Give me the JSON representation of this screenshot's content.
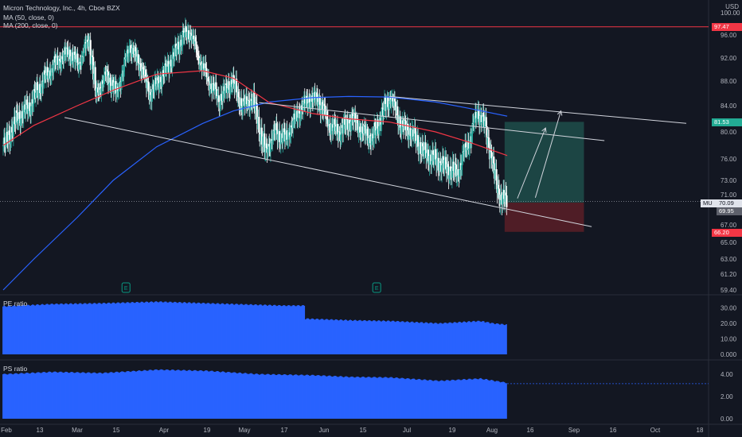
{
  "header": {
    "title": "Micron Technology, Inc., 4h, Cboe BZX",
    "ma50": "MA (50, close, 0)",
    "ma200": "MA (200, close, 0)",
    "currency": "USD"
  },
  "price_tags": {
    "red_line": "97.47",
    "target": "81.53",
    "symbol": "MU",
    "last": "70.09",
    "entry": "69.95",
    "stop": "66.20"
  },
  "panes": {
    "pe_label": "PE ratio",
    "ps_label": "PS ratio"
  },
  "colors": {
    "background": "#131722",
    "up": "#26a69a",
    "down": "#ffffff",
    "ma50": "#f23645",
    "ma200": "#2962ff",
    "bars": "#2962ff",
    "target_zone": "#1e4d4a",
    "stop_zone": "#5a1f27"
  },
  "chart_data": [
    {
      "type": "candlestick",
      "title": "Micron Technology, Inc., 4h, Cboe BZX",
      "y_ticks": [
        "100.00",
        "96.00",
        "92.00",
        "88.00",
        "84.00",
        "80.00",
        "76.00",
        "73.00",
        "71.00",
        "67.00",
        "65.00",
        "63.00",
        "61.20",
        "59.40"
      ],
      "x_ticks": [
        "Feb",
        "13",
        "Mar",
        "15",
        "Apr",
        "19",
        "May",
        "17",
        "Jun",
        "15",
        "Jul",
        "19",
        "Aug",
        "16",
        "Sep",
        "16",
        "Oct",
        "18"
      ],
      "ylim": [
        58.5,
        101
      ],
      "price_path": [
        [
          "2024-02-01",
          78
        ],
        [
          "2024-02-06",
          82
        ],
        [
          "2024-02-11",
          84
        ],
        [
          "2024-02-16",
          88
        ],
        [
          "2024-02-21",
          91
        ],
        [
          "2024-02-26",
          93
        ],
        [
          "2024-03-01",
          91
        ],
        [
          "2024-03-05",
          95
        ],
        [
          "2024-03-08",
          86
        ],
        [
          "2024-03-12",
          89
        ],
        [
          "2024-03-16",
          86
        ],
        [
          "2024-03-21",
          94
        ],
        [
          "2024-03-25",
          91
        ],
        [
          "2024-03-29",
          86
        ],
        [
          "2024-04-03",
          89
        ],
        [
          "2024-04-08",
          93
        ],
        [
          "2024-04-11",
          96
        ],
        [
          "2024-04-14",
          96.3
        ],
        [
          "2024-04-17",
          92
        ],
        [
          "2024-04-21",
          88
        ],
        [
          "2024-04-25",
          85
        ],
        [
          "2024-04-30",
          88
        ],
        [
          "2024-05-04",
          84
        ],
        [
          "2024-05-08",
          85
        ],
        [
          "2024-05-13",
          77
        ],
        [
          "2024-05-17",
          80
        ],
        [
          "2024-05-21",
          79
        ],
        [
          "2024-05-26",
          83
        ],
        [
          "2024-05-30",
          85
        ],
        [
          "2024-06-03",
          85
        ],
        [
          "2024-06-07",
          81
        ],
        [
          "2024-06-11",
          80
        ],
        [
          "2024-06-16",
          82
        ],
        [
          "2024-06-20",
          80
        ],
        [
          "2024-06-24",
          79
        ],
        [
          "2024-06-28",
          83
        ],
        [
          "2024-07-01",
          85.5
        ],
        [
          "2024-07-05",
          81
        ],
        [
          "2024-07-09",
          80
        ],
        [
          "2024-07-14",
          77
        ],
        [
          "2024-07-18",
          76
        ],
        [
          "2024-07-22",
          75
        ],
        [
          "2024-07-27",
          74
        ],
        [
          "2024-08-01",
          79
        ],
        [
          "2024-08-04",
          83
        ],
        [
          "2024-08-07",
          81
        ],
        [
          "2024-08-10",
          75
        ],
        [
          "2024-08-13",
          70.5
        ],
        [
          "2024-08-16",
          70
        ]
      ],
      "ma50_path": [
        [
          "2024-02-01",
          78
        ],
        [
          "2024-02-13",
          81
        ],
        [
          "2024-03-01",
          84
        ],
        [
          "2024-03-15",
          86.5
        ],
        [
          "2024-04-01",
          89.2
        ],
        [
          "2024-04-19",
          89.8
        ],
        [
          "2024-05-01",
          88.5
        ],
        [
          "2024-05-15",
          84.5
        ],
        [
          "2024-06-01",
          82.8
        ],
        [
          "2024-06-15",
          82
        ],
        [
          "2024-07-01",
          81.5
        ],
        [
          "2024-07-19",
          80
        ],
        [
          "2024-08-01",
          78.5
        ],
        [
          "2024-08-16",
          76.5
        ]
      ],
      "ma200_path": [
        [
          "2024-02-01",
          59.4
        ],
        [
          "2024-02-13",
          63
        ],
        [
          "2024-03-01",
          68
        ],
        [
          "2024-03-15",
          73
        ],
        [
          "2024-04-01",
          77.8
        ],
        [
          "2024-04-19",
          81.3
        ],
        [
          "2024-05-01",
          83.2
        ],
        [
          "2024-05-15",
          84.6
        ],
        [
          "2024-06-01",
          85.3
        ],
        [
          "2024-06-15",
          85.5
        ],
        [
          "2024-07-01",
          85.4
        ],
        [
          "2024-07-19",
          84.6
        ],
        [
          "2024-08-01",
          83.6
        ],
        [
          "2024-08-16",
          82.4
        ]
      ],
      "trendlines": [
        {
          "from": [
            "2024-02-25",
            82.2
          ],
          "to": [
            "2024-09-18",
            66.8
          ]
        },
        {
          "from": [
            "2024-05-11",
            84.5
          ],
          "to": [
            "2024-09-23",
            78.7
          ]
        },
        {
          "from": [
            "2024-07-01",
            85.5
          ],
          "to": [
            "2024-10-25",
            81.3
          ]
        }
      ],
      "arrows": [
        {
          "from": [
            "2024-08-20",
            70.5
          ],
          "to": [
            "2024-08-31",
            80.6
          ]
        },
        {
          "from": [
            "2024-08-27",
            70.6
          ],
          "to": [
            "2024-09-06",
            83.2
          ]
        }
      ],
      "position": {
        "start": "2024-08-15",
        "end": "2024-09-15",
        "entry": 69.95,
        "target": 81.53,
        "stop": 66.2
      },
      "horizontal_line": 97.47,
      "last_price": 70.09,
      "earnings_markers": [
        "2024-03-20",
        "2024-06-26"
      ]
    },
    {
      "type": "bar",
      "name": "PE ratio",
      "y_ticks": [
        "30.00",
        "20.00",
        "10.00",
        "0.000"
      ],
      "ylim": [
        0,
        36
      ],
      "segments": [
        [
          "2024-02-01",
          31
        ],
        [
          "2024-02-20",
          32.5
        ],
        [
          "2024-03-10",
          33
        ],
        [
          "2024-04-01",
          34
        ],
        [
          "2024-04-20",
          33
        ],
        [
          "2024-05-10",
          32
        ],
        [
          "2024-05-20",
          31.5
        ],
        [
          "2024-05-28",
          31.5
        ],
        [
          "2024-05-29",
          23
        ],
        [
          "2024-06-15",
          22
        ],
        [
          "2024-07-01",
          21.5
        ],
        [
          "2024-07-20",
          20
        ],
        [
          "2024-08-05",
          21.5
        ],
        [
          "2024-08-10",
          20
        ],
        [
          "2024-08-16",
          19
        ]
      ]
    },
    {
      "type": "bar",
      "name": "PS ratio",
      "y_ticks": [
        "4.00",
        "2.00",
        "0.00"
      ],
      "ylim": [
        0,
        5
      ],
      "segments": [
        [
          "2024-02-01",
          4.0
        ],
        [
          "2024-02-20",
          4.2
        ],
        [
          "2024-03-10",
          4.1
        ],
        [
          "2024-04-01",
          4.4
        ],
        [
          "2024-04-20",
          4.3
        ],
        [
          "2024-05-10",
          4.0
        ],
        [
          "2024-06-01",
          3.9
        ],
        [
          "2024-06-15",
          3.75
        ],
        [
          "2024-07-01",
          3.7
        ],
        [
          "2024-07-20",
          3.4
        ],
        [
          "2024-08-05",
          3.6
        ],
        [
          "2024-08-16",
          3.2
        ]
      ],
      "reference_level": 3.15
    }
  ]
}
